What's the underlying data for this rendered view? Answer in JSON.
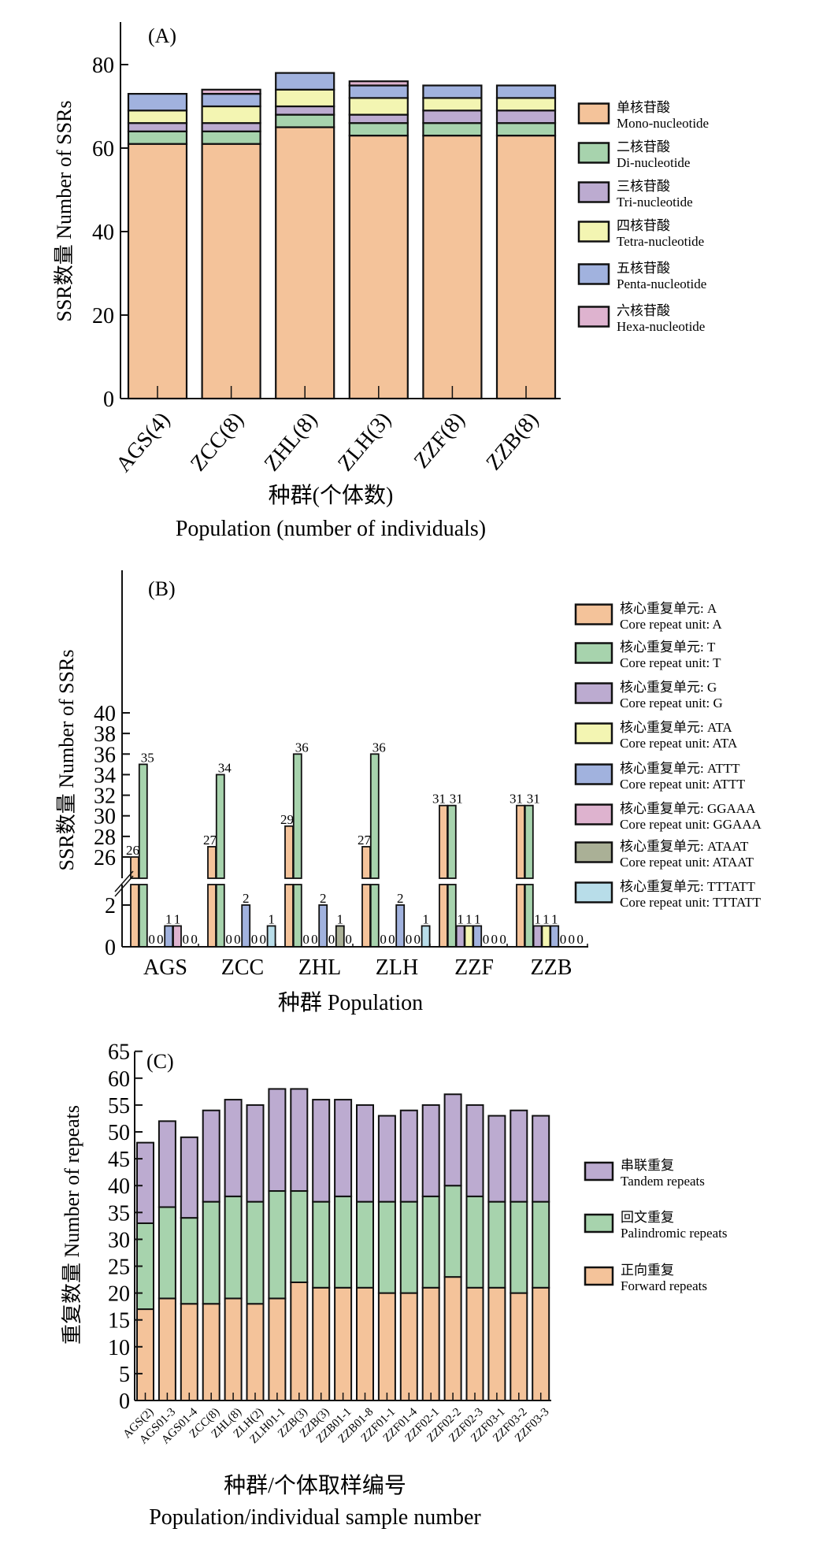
{
  "colors": {
    "orange": "#f4c39a",
    "green": "#a7d3ad",
    "purple": "#bcabd0",
    "yellow": "#f3f5b2",
    "blue": "#a1b2de",
    "pink": "#deb3cf",
    "olive": "#aab096",
    "lightblue": "#b8dde9"
  },
  "chart_data": [
    {
      "panel": "(A)",
      "type": "bar",
      "stacked": true,
      "categories": [
        "AGS(4)",
        "ZCC(8)",
        "ZHL(8)",
        "ZLH(3)",
        "ZZF(8)",
        "ZZB(8)"
      ],
      "series": [
        {
          "name": "单核苷酸",
          "name_en": "Mono-nucleotide",
          "color": "orange",
          "values": [
            61,
            61,
            65,
            63,
            63,
            63
          ]
        },
        {
          "name": "二核苷酸",
          "name_en": "Di-nucleotide",
          "color": "green",
          "values": [
            3,
            3,
            3,
            3,
            3,
            3
          ]
        },
        {
          "name": "三核苷酸",
          "name_en": "Tri-nucleotide",
          "color": "purple",
          "values": [
            2,
            2,
            2,
            2,
            3,
            3
          ]
        },
        {
          "name": "四核苷酸",
          "name_en": "Tetra-nucleotide",
          "color": "yellow",
          "values": [
            3,
            4,
            4,
            4,
            3,
            3
          ]
        },
        {
          "name": "五核苷酸",
          "name_en": "Penta-nucleotide",
          "color": "blue",
          "values": [
            4,
            3,
            4,
            3,
            3,
            3
          ]
        },
        {
          "name": "六核苷酸",
          "name_en": "Hexa-nucleotide",
          "color": "pink",
          "values": [
            0,
            1,
            0,
            1,
            0,
            0
          ]
        }
      ],
      "ylabel": "SSR数量 Number of SSRs",
      "xlabel": "种群(个体数)",
      "xlabel_en": "Population (number of individuals)",
      "ylim": [
        0,
        90
      ],
      "yticks": [
        0,
        20,
        40,
        60,
        80
      ],
      "legend": "right",
      "grid": false
    },
    {
      "panel": "(B)",
      "type": "bar",
      "grouped": true,
      "broken_axis": {
        "lower": [
          0,
          3
        ],
        "upper": [
          24,
          40
        ]
      },
      "categories": [
        "AGS",
        "ZCC",
        "ZHL",
        "ZLH",
        "ZZF",
        "ZZB"
      ],
      "series": [
        {
          "name": "核心重复单元: A",
          "name_en": "Core repeat unit: A",
          "color": "orange",
          "values": [
            26,
            27,
            29,
            27,
            31,
            31
          ]
        },
        {
          "name": "核心重复单元: T",
          "name_en": "Core repeat unit: T",
          "color": "green",
          "values": [
            35,
            34,
            36,
            36,
            31,
            31
          ]
        },
        {
          "name": "核心重复单元: G",
          "name_en": "Core repeat unit: G",
          "color": "purple",
          "values": [
            0,
            0,
            0,
            0,
            1,
            1
          ]
        },
        {
          "name": "核心重复单元: ATA",
          "name_en": "Core repeat unit: ATA",
          "color": "yellow",
          "values": [
            0,
            0,
            0,
            0,
            1,
            1
          ]
        },
        {
          "name": "核心重复单元: ATTT",
          "name_en": "Core repeat unit: ATTT",
          "color": "blue",
          "values": [
            1,
            2,
            2,
            2,
            1,
            1
          ]
        },
        {
          "name": "核心重复单元: GGAAA",
          "name_en": "Core repeat unit: GGAAA",
          "color": "pink",
          "values": [
            1,
            0,
            0,
            0,
            0,
            0
          ]
        },
        {
          "name": "核心重复单元: ATAAT",
          "name_en": "Core repeat unit: ATAAT",
          "color": "olive",
          "values": [
            0,
            0,
            1,
            0,
            0,
            0
          ]
        },
        {
          "name": "核心重复单元: TTTATT",
          "name_en": "Core repeat unit: TTTATT",
          "color": "lightblue",
          "values": [
            0,
            1,
            0,
            1,
            0,
            0
          ]
        }
      ],
      "ylabel": "SSR数量 Number of SSRs",
      "xlabel": "种群 Population",
      "yticks_upper": [
        26,
        28,
        30,
        32,
        34,
        36,
        38,
        40
      ],
      "yticks_lower": [
        0,
        2
      ],
      "legend": "right",
      "data_labels": true,
      "grid": false
    },
    {
      "panel": "(C)",
      "type": "bar",
      "stacked": true,
      "categories": [
        "AGS(2)",
        "AGS01-3",
        "AGS01-4",
        "ZCC(8)",
        "ZHL(8)",
        "ZLH(2)",
        "ZLH01-1",
        "ZZB(3)",
        "ZZB(3)",
        "ZZB01-1",
        "ZZB01-8",
        "ZZF01-1",
        "ZZF01-4",
        "ZZF02-1",
        "ZZF02-2",
        "ZZF02-3",
        "ZZF03-1",
        "ZZF03-2",
        "ZZF03-3"
      ],
      "series": [
        {
          "name": "正向重复",
          "name_en": "Forward repeats",
          "color": "orange",
          "values": [
            17,
            19,
            18,
            18,
            19,
            18,
            19,
            22,
            21,
            21,
            21,
            20,
            20,
            21,
            23,
            21,
            21,
            20,
            21
          ]
        },
        {
          "name": "回文重复",
          "name_en": "Palindromic repeats",
          "color": "green",
          "values": [
            16,
            17,
            16,
            19,
            19,
            19,
            20,
            17,
            16,
            17,
            16,
            17,
            17,
            17,
            17,
            17,
            16,
            17,
            16
          ]
        },
        {
          "name": "串联重复",
          "name_en": "Tandem repeats",
          "color": "purple",
          "values": [
            15,
            16,
            15,
            17,
            18,
            18,
            19,
            19,
            19,
            18,
            18,
            16,
            17,
            17,
            17,
            17,
            16,
            17,
            16
          ]
        }
      ],
      "legend_order": [
        "串联重复",
        "回文重复",
        "正向重复"
      ],
      "ylabel": "重复数量 Number of repeats",
      "xlabel": "种群/个体取样编号",
      "xlabel_en": "Population/individual sample number",
      "ylim": [
        0,
        65
      ],
      "yticks": [
        0,
        5,
        10,
        15,
        20,
        25,
        30,
        35,
        40,
        45,
        50,
        55,
        60,
        65
      ],
      "legend": "right",
      "grid": false
    }
  ]
}
